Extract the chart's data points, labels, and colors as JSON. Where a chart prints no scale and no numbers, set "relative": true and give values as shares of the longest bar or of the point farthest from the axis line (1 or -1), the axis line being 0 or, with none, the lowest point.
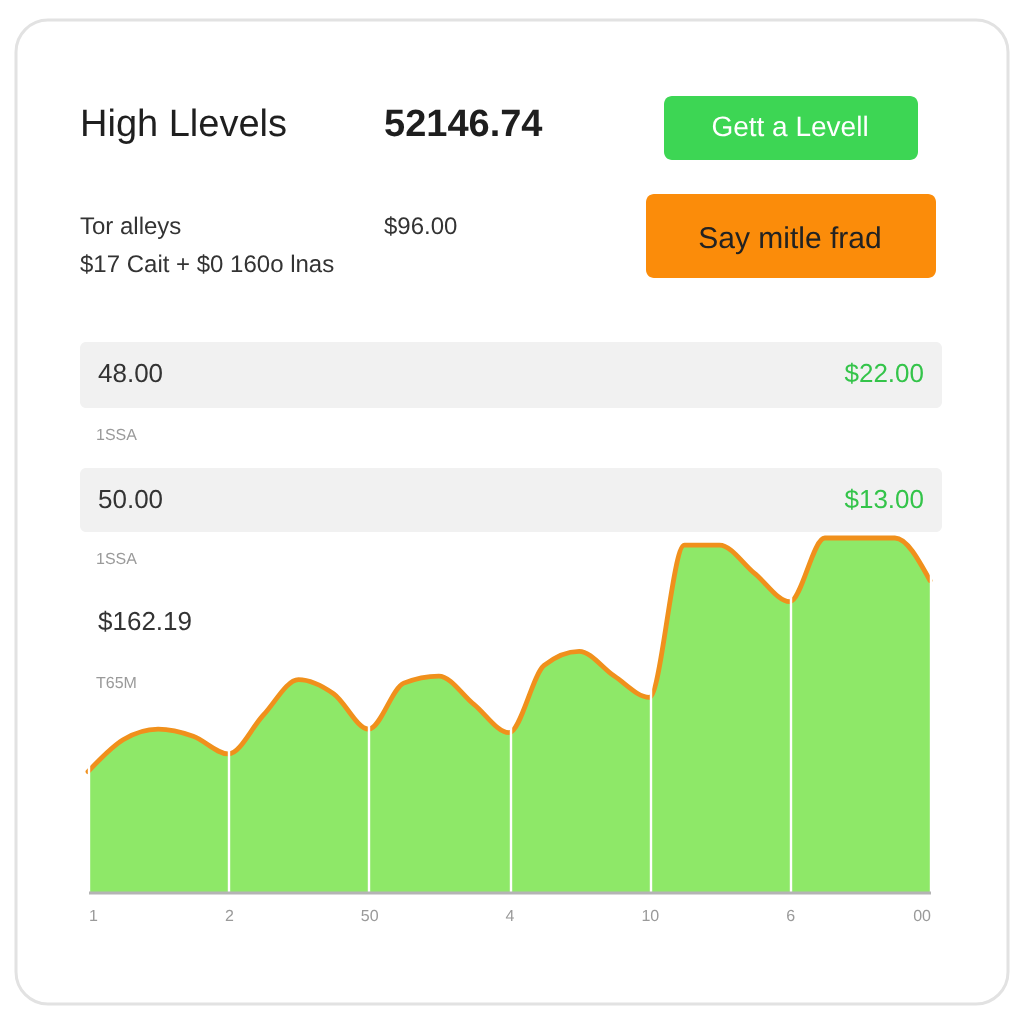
{
  "chart_data": {
    "type": "area",
    "title": "High Llevels",
    "relative": true,
    "categories": [
      "1",
      null,
      null,
      null,
      "2",
      null,
      null,
      null,
      "50",
      null,
      null,
      null,
      "4",
      null,
      null,
      null,
      "10",
      null,
      null,
      null,
      "6",
      null,
      null,
      null,
      "00"
    ],
    "series": [
      {
        "color": "#8ee868",
        "values": [
          0.34,
          0.43,
          0.46,
          0.44,
          0.39,
          0.5,
          0.6,
          0.56,
          0.46,
          0.59,
          0.61,
          0.53,
          0.45,
          0.64,
          0.68,
          0.61,
          0.55,
          0.98,
          0.98,
          0.9,
          0.82,
          1,
          1,
          1,
          0.88
        ]
      }
    ],
    "grid": "x",
    "annotations": [
      "52146.74",
      "Gett a Levell",
      "Tor alleys",
      "$96.00",
      "Say mitle frad",
      "$17 Cait + $0 160o lnas",
      "48.00",
      "$22.00",
      "1SSA",
      "50.00",
      "$13.00",
      "1SSA",
      "$162.19",
      "T65M"
    ]
  }
}
